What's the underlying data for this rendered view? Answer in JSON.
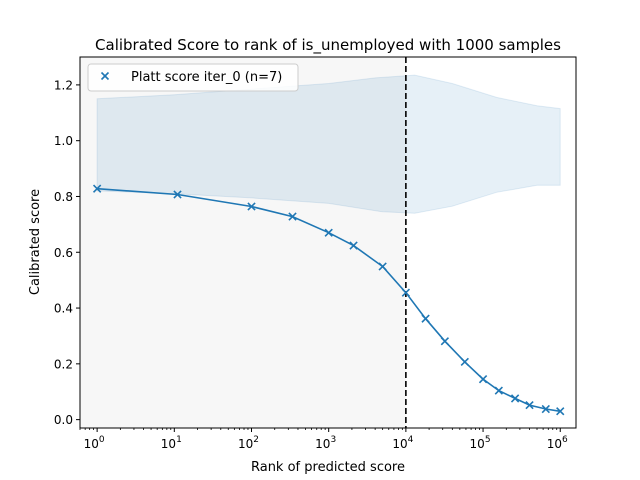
{
  "chart_data": {
    "type": "line",
    "title": "Calibrated Score to rank of is_unemployed with 1000 samples",
    "xlabel": "Rank of predicted score",
    "ylabel": "Calibrated score",
    "xscale": "log",
    "xlim": [
      0.6,
      1600000
    ],
    "ylim": [
      -0.03,
      1.3
    ],
    "x_ticks": [
      {
        "value": 1,
        "base": "10",
        "exp": "0"
      },
      {
        "value": 10,
        "base": "10",
        "exp": "1"
      },
      {
        "value": 100,
        "base": "10",
        "exp": "2"
      },
      {
        "value": 1000,
        "base": "10",
        "exp": "3"
      },
      {
        "value": 10000,
        "base": "10",
        "exp": "4"
      },
      {
        "value": 100000,
        "base": "10",
        "exp": "5"
      },
      {
        "value": 1000000,
        "base": "10",
        "exp": "6"
      }
    ],
    "y_ticks": [
      {
        "value": 0.0,
        "label": "0.0"
      },
      {
        "value": 0.2,
        "label": "0.2"
      },
      {
        "value": 0.4,
        "label": "0.4"
      },
      {
        "value": 0.6,
        "label": "0.6"
      },
      {
        "value": 0.8,
        "label": "0.8"
      },
      {
        "value": 1.0,
        "label": "1.0"
      },
      {
        "value": 1.2,
        "label": "1.2"
      }
    ],
    "grid": false,
    "legend_position": "top-left",
    "series": [
      {
        "name": "Platt score iter_0 (n=7)",
        "color": "#1f77b4",
        "marker": "x",
        "points": [
          {
            "x": 1,
            "y": 0.828
          },
          {
            "x": 11,
            "y": 0.807
          },
          {
            "x": 100,
            "y": 0.764
          },
          {
            "x": 340,
            "y": 0.728
          },
          {
            "x": 1000,
            "y": 0.67
          },
          {
            "x": 2100,
            "y": 0.624
          },
          {
            "x": 5000,
            "y": 0.549
          },
          {
            "x": 10000,
            "y": 0.455
          },
          {
            "x": 18000,
            "y": 0.362
          },
          {
            "x": 32000,
            "y": 0.281
          },
          {
            "x": 58000,
            "y": 0.207
          },
          {
            "x": 100000,
            "y": 0.145
          },
          {
            "x": 160000,
            "y": 0.104
          },
          {
            "x": 260000,
            "y": 0.076
          },
          {
            "x": 400000,
            "y": 0.052
          },
          {
            "x": 650000,
            "y": 0.038
          },
          {
            "x": 1000000,
            "y": 0.03
          }
        ]
      }
    ],
    "band": {
      "color": "#1f77b4",
      "opacity": 0.11,
      "upper": [
        {
          "x": 1,
          "y": 1.15
        },
        {
          "x": 10,
          "y": 1.165
        },
        {
          "x": 100,
          "y": 1.185
        },
        {
          "x": 1000,
          "y": 1.205
        },
        {
          "x": 4000,
          "y": 1.225
        },
        {
          "x": 13000,
          "y": 1.235
        },
        {
          "x": 40000,
          "y": 1.205
        },
        {
          "x": 150000,
          "y": 1.155
        },
        {
          "x": 500000,
          "y": 1.125
        },
        {
          "x": 1000000,
          "y": 1.115
        }
      ],
      "lower": [
        {
          "x": 1,
          "y": 0.82
        },
        {
          "x": 10,
          "y": 0.81
        },
        {
          "x": 100,
          "y": 0.795
        },
        {
          "x": 1000,
          "y": 0.775
        },
        {
          "x": 5000,
          "y": 0.745
        },
        {
          "x": 13000,
          "y": 0.74
        },
        {
          "x": 40000,
          "y": 0.765
        },
        {
          "x": 150000,
          "y": 0.815
        },
        {
          "x": 500000,
          "y": 0.84
        },
        {
          "x": 1000000,
          "y": 0.84
        }
      ]
    },
    "shaded_region": {
      "x_from": 0.6,
      "x_to": 10000,
      "color": "#f7f7f7"
    },
    "vline": {
      "x": 10000,
      "style": "dashed",
      "color": "#000000"
    }
  }
}
